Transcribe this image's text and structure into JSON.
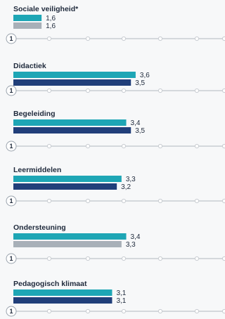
{
  "chart_data": {
    "type": "bar",
    "orientation": "horizontal",
    "x_min": 1,
    "x_max": 5.5,
    "tick_label": "1",
    "colors": {
      "teal": "#1ea6b5",
      "navy": "#213f7a",
      "grey": "#a8b0b8"
    },
    "groups": [
      {
        "title": "Sociale veiligheid*",
        "bars": [
          {
            "value": 1.6,
            "label": "1,6",
            "color": "teal"
          },
          {
            "value": 1.6,
            "label": "1,6",
            "color": "grey"
          }
        ]
      },
      {
        "title": "Didactiek",
        "bars": [
          {
            "value": 3.6,
            "label": "3,6",
            "color": "teal"
          },
          {
            "value": 3.5,
            "label": "3,5",
            "color": "navy"
          }
        ]
      },
      {
        "title": "Begeleiding",
        "bars": [
          {
            "value": 3.4,
            "label": "3,4",
            "color": "teal"
          },
          {
            "value": 3.5,
            "label": "3,5",
            "color": "navy"
          }
        ]
      },
      {
        "title": "Leermiddelen",
        "bars": [
          {
            "value": 3.3,
            "label": "3,3",
            "color": "teal"
          },
          {
            "value": 3.2,
            "label": "3,2",
            "color": "navy"
          }
        ]
      },
      {
        "title": "Ondersteuning",
        "bars": [
          {
            "value": 3.4,
            "label": "3,4",
            "color": "teal"
          },
          {
            "value": 3.3,
            "label": "3,3",
            "color": "grey"
          }
        ]
      },
      {
        "title": "Pedagogisch klimaat",
        "bars": [
          {
            "value": 3.1,
            "label": "3,1",
            "color": "teal"
          },
          {
            "value": 3.1,
            "label": "3,1",
            "color": "navy"
          }
        ]
      }
    ]
  }
}
